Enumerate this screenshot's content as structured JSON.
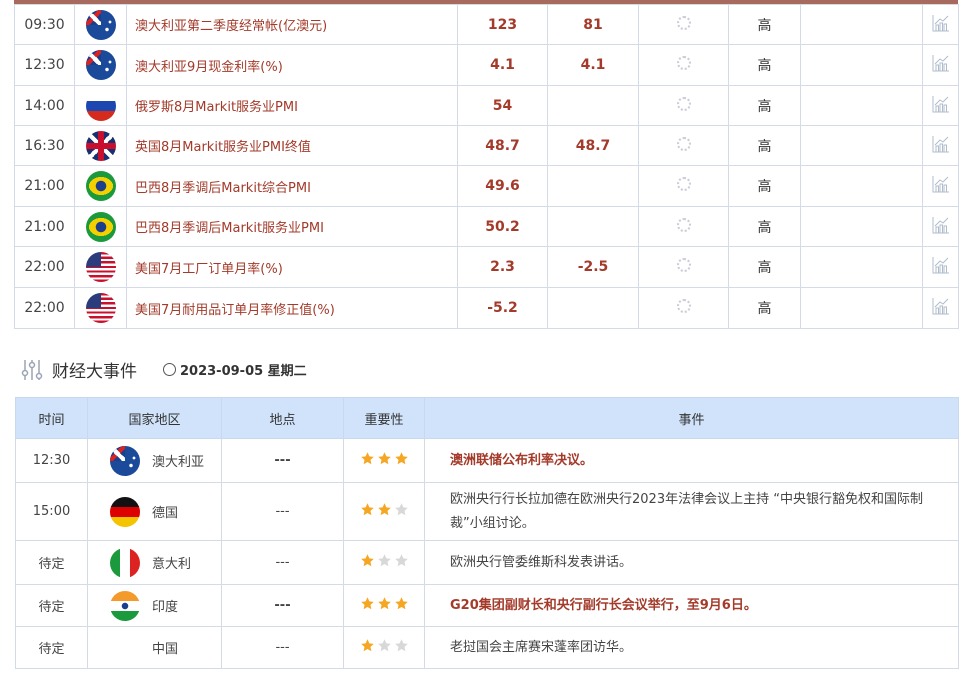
{
  "calendar": {
    "rows": [
      {
        "time": "09:30",
        "flag": "australia",
        "name": "澳大利亚第二季度经常帐(亿澳元)",
        "previous": "123",
        "forecast": "81",
        "importance": "高"
      },
      {
        "time": "12:30",
        "flag": "australia",
        "name": "澳大利亚9月现金利率(%)",
        "previous": "4.1",
        "forecast": "4.1",
        "importance": "高"
      },
      {
        "time": "14:00",
        "flag": "russia",
        "name": "俄罗斯8月Markit服务业PMI",
        "previous": "54",
        "forecast": "",
        "importance": "高"
      },
      {
        "time": "16:30",
        "flag": "uk",
        "name": "英国8月Markit服务业PMI终值",
        "previous": "48.7",
        "forecast": "48.7",
        "importance": "高"
      },
      {
        "time": "21:00",
        "flag": "brazil",
        "name": "巴西8月季调后Markit综合PMI",
        "previous": "49.6",
        "forecast": "",
        "importance": "高"
      },
      {
        "time": "21:00",
        "flag": "brazil",
        "name": "巴西8月季调后Markit服务业PMI",
        "previous": "50.2",
        "forecast": "",
        "importance": "高"
      },
      {
        "time": "22:00",
        "flag": "usa",
        "name": "美国7月工厂订单月率(%)",
        "previous": "2.3",
        "forecast": "-2.5",
        "importance": "高"
      },
      {
        "time": "22:00",
        "flag": "usa",
        "name": "美国7月耐用品订单月率修正值(%)",
        "previous": "-5.2",
        "forecast": "",
        "importance": "高"
      }
    ]
  },
  "events": {
    "title": "财经大事件",
    "date": "2023-09-05 星期二",
    "headers": [
      "时间",
      "国家地区",
      "地点",
      "重要性",
      "事件"
    ],
    "rows": [
      {
        "time": "12:30",
        "flag": "australia",
        "country": "澳大利亚",
        "location": "---",
        "stars": 3,
        "event": "澳洲联储公布利率决议。",
        "highlight": true
      },
      {
        "time": "15:00",
        "flag": "germany",
        "country": "德国",
        "location": "---",
        "stars": 2,
        "event": "欧洲央行行长拉加德在欧洲央行2023年法律会议上主持 “中央银行豁免权和国际制裁”小组讨论。",
        "highlight": false
      },
      {
        "time": "待定",
        "flag": "italy",
        "country": "意大利",
        "location": "---",
        "stars": 1,
        "event": "欧洲央行管委维斯科发表讲话。",
        "highlight": false
      },
      {
        "time": "待定",
        "flag": "india",
        "country": "印度",
        "location": "---",
        "stars": 3,
        "event": "G20集团副财长和央行副行长会议举行，至9月6日。",
        "highlight": true
      },
      {
        "time": "待定",
        "flag": "",
        "country": "中国",
        "location": "---",
        "stars": 1,
        "event": "老挝国会主席赛宋蓬率团访华。",
        "highlight": false
      }
    ]
  },
  "colors": {
    "accent_red": "#a33a2a",
    "header_blue": "#d0e3fb",
    "star_gold": "#f5a623",
    "star_gray": "#d8d8d8"
  }
}
